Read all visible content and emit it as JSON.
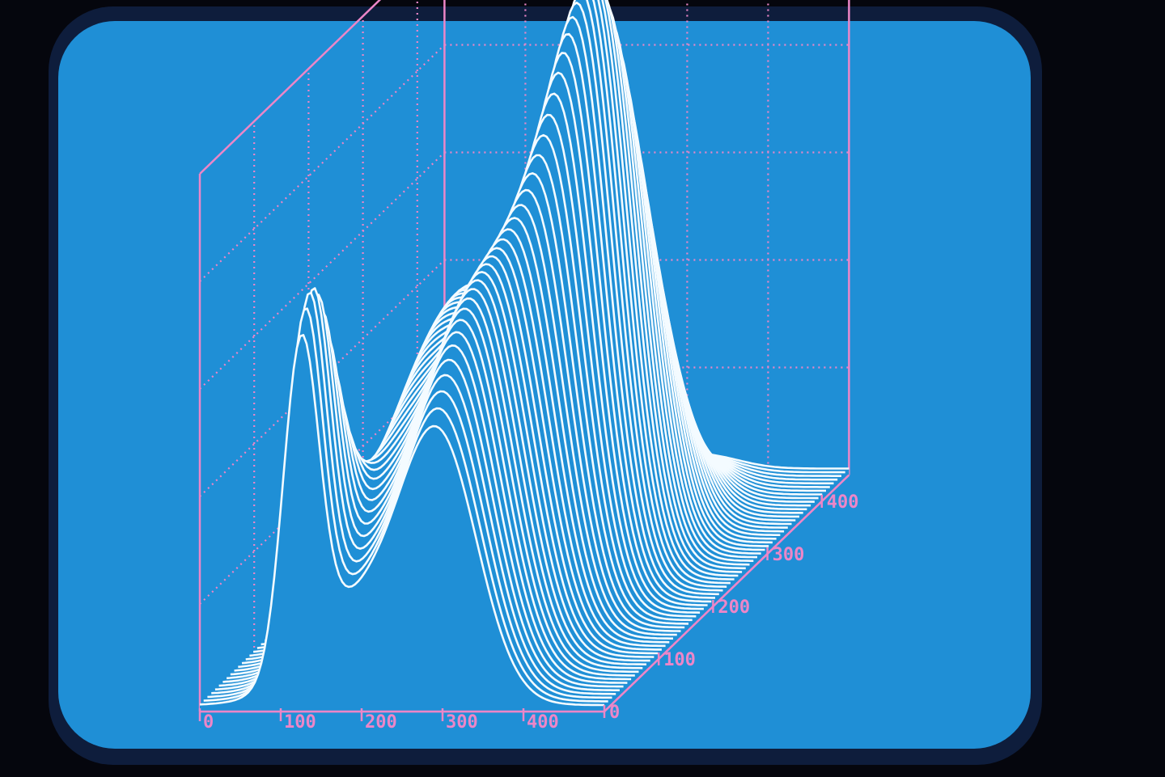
{
  "colors": {
    "background": "#05060d",
    "bezel": "#0e1d3c",
    "screen": "#1f8fd6",
    "axes": "#ec86c8",
    "surface": "#f4fbff"
  },
  "chart_data": {
    "type": "surface-3d",
    "title": "",
    "xlabel": "",
    "ylabel": "",
    "zlabel": "",
    "x_ticks": [
      "0",
      "100",
      "200",
      "300",
      "400"
    ],
    "y_ticks": [
      "0",
      "100",
      "200",
      "300",
      "400"
    ],
    "xlim": [
      0,
      500
    ],
    "ylim": [
      0,
      450
    ],
    "z_grid_divisions": 5,
    "grid": true,
    "peaks": [
      {
        "x": 125,
        "y": 15,
        "height": 0.64,
        "width_x": 22,
        "width_y": 38
      },
      {
        "x": 190,
        "y": 200,
        "height": 0.56,
        "width_x": 60,
        "width_y": 130
      },
      {
        "x": 295,
        "y": 60,
        "height": 0.58,
        "width_x": 48,
        "width_y": 95
      },
      {
        "x": 330,
        "y": 240,
        "height": 1.0,
        "width_x": 40,
        "width_y": 75
      }
    ]
  }
}
